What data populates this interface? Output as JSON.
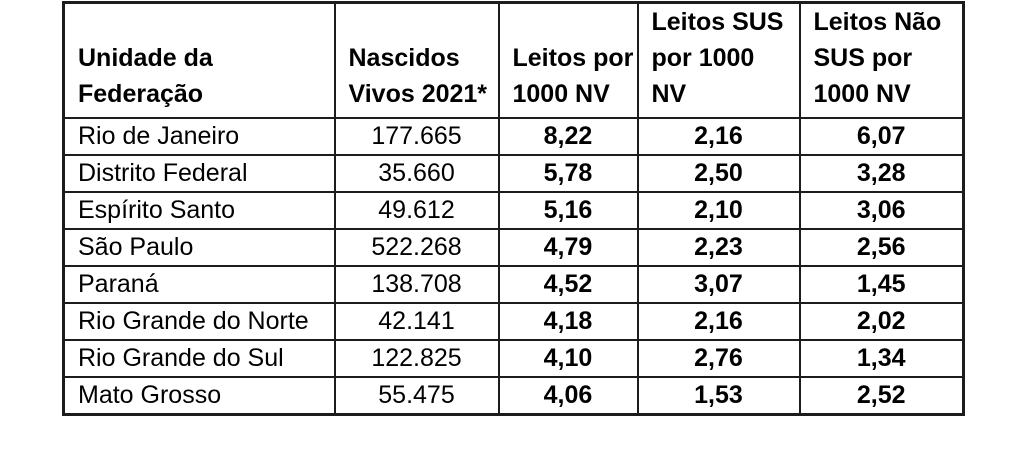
{
  "colors": {
    "page_background": "#ffffff",
    "table_border": "#1c1c1c",
    "text": "#000000"
  },
  "chart_data": {
    "type": "table",
    "columns": [
      {
        "label": "Unidade da Federação",
        "lines": [
          "Unidade da",
          "Federação"
        ]
      },
      {
        "label": "Nascidos Vivos 2021*",
        "lines": [
          "Nascidos",
          "Vivos 2021*"
        ]
      },
      {
        "label": "Leitos por 1000 NV",
        "lines": [
          "Leitos por",
          "1000 NV"
        ]
      },
      {
        "label": "Leitos SUS por 1000 NV",
        "lines": [
          "Leitos SUS",
          "por 1000",
          "NV"
        ]
      },
      {
        "label": "Leitos Não SUS por 1000 NV",
        "lines": [
          "Leitos Não",
          "SUS por",
          "1000 NV"
        ]
      }
    ],
    "rows": [
      [
        "Rio de Janeiro",
        "177.665",
        "8,22",
        "2,16",
        "6,07"
      ],
      [
        "Distrito Federal",
        "35.660",
        "5,78",
        "2,50",
        "3,28"
      ],
      [
        "Espírito Santo",
        "49.612",
        "5,16",
        "2,10",
        "3,06"
      ],
      [
        "São Paulo",
        "522.268",
        "4,79",
        "2,23",
        "2,56"
      ],
      [
        "Paraná",
        "138.708",
        "4,52",
        "3,07",
        "1,45"
      ],
      [
        "Rio Grande do Norte",
        "42.141",
        "4,18",
        "2,16",
        "2,02"
      ],
      [
        "Rio Grande do Sul",
        "122.825",
        "4,10",
        "2,76",
        "1,34"
      ],
      [
        "Mato Grosso",
        "55.475",
        "4,06",
        "1,53",
        "2,52"
      ]
    ],
    "rows_numeric": [
      {
        "uf": "Rio de Janeiro",
        "nascidos_vivos_2021": 177665,
        "leitos_por_1000nv": 8.22,
        "leitos_sus_por_1000nv": 2.16,
        "leitos_nao_sus_por_1000nv": 6.07
      },
      {
        "uf": "Distrito Federal",
        "nascidos_vivos_2021": 35660,
        "leitos_por_1000nv": 5.78,
        "leitos_sus_por_1000nv": 2.5,
        "leitos_nao_sus_por_1000nv": 3.28
      },
      {
        "uf": "Espírito Santo",
        "nascidos_vivos_2021": 49612,
        "leitos_por_1000nv": 5.16,
        "leitos_sus_por_1000nv": 2.1,
        "leitos_nao_sus_por_1000nv": 3.06
      },
      {
        "uf": "São Paulo",
        "nascidos_vivos_2021": 522268,
        "leitos_por_1000nv": 4.79,
        "leitos_sus_por_1000nv": 2.23,
        "leitos_nao_sus_por_1000nv": 2.56
      },
      {
        "uf": "Paraná",
        "nascidos_vivos_2021": 138708,
        "leitos_por_1000nv": 4.52,
        "leitos_sus_por_1000nv": 3.07,
        "leitos_nao_sus_por_1000nv": 1.45
      },
      {
        "uf": "Rio Grande do Norte",
        "nascidos_vivos_2021": 42141,
        "leitos_por_1000nv": 4.18,
        "leitos_sus_por_1000nv": 2.16,
        "leitos_nao_sus_por_1000nv": 2.02
      },
      {
        "uf": "Rio Grande do Sul",
        "nascidos_vivos_2021": 122825,
        "leitos_por_1000nv": 4.1,
        "leitos_sus_por_1000nv": 2.76,
        "leitos_nao_sus_por_1000nv": 1.34
      },
      {
        "uf": "Mato Grosso",
        "nascidos_vivos_2021": 55475,
        "leitos_por_1000nv": 4.06,
        "leitos_sus_por_1000nv": 1.53,
        "leitos_nao_sus_por_1000nv": 2.52
      }
    ],
    "title": "",
    "notes_marker": "*"
  }
}
